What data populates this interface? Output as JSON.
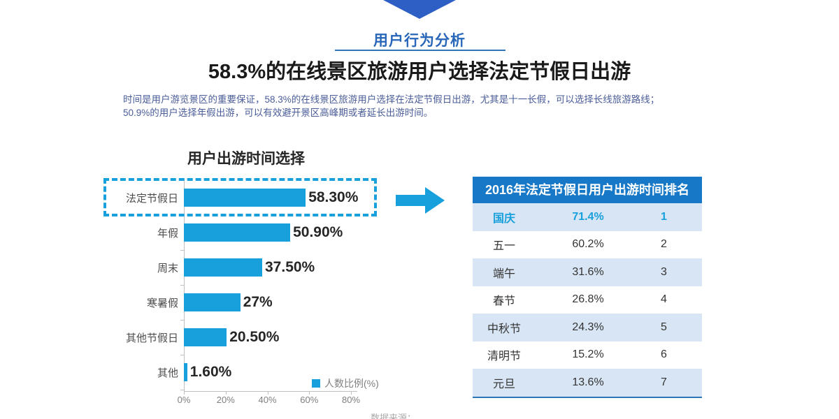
{
  "page": {
    "section_label": "用户行为分析",
    "title": "58.3%的在线景区旅游用户选择法定节假日出游",
    "description_line1": "时间是用户游览景区的重要保证，58.3%的在线景区旅游用户选择在法定节假日出游，尤其是十一长假，可以选择长线旅游路线；",
    "description_line2": "50.9%的用户选择年假出游，可以有效避开景区高峰期或者延长出游时间。",
    "source_note": "数据来源："
  },
  "icons": {
    "chevron_down": "chevron-down-icon",
    "arrow_right": "arrow-right-icon"
  },
  "chart_data": {
    "type": "bar",
    "orientation": "horizontal",
    "title": "用户出游时间选择",
    "categories": [
      "法定节假日",
      "年假",
      "周末",
      "寒暑假",
      "其他节假日",
      "其他"
    ],
    "values": [
      58.3,
      50.9,
      37.5,
      27,
      20.5,
      1.6
    ],
    "value_labels": [
      "58.30%",
      "50.90%",
      "37.50%",
      "27%",
      "20.50%",
      "1.60%"
    ],
    "x_ticks": [
      "0%",
      "20%",
      "40%",
      "60%",
      "80%"
    ],
    "xlim": [
      0,
      80
    ],
    "grid": false,
    "legend": "人数比例(%)",
    "legend_position": "bottom-right",
    "highlight_category": "法定节假日"
  },
  "table": {
    "title": "2016年法定节假日用户出游时间排名",
    "rows": [
      {
        "name": "国庆",
        "percent": "71.4%",
        "rank": "1"
      },
      {
        "name": "五一",
        "percent": "60.2%",
        "rank": "2"
      },
      {
        "name": "端午",
        "percent": "31.6%",
        "rank": "3"
      },
      {
        "name": "春节",
        "percent": "26.8%",
        "rank": "4"
      },
      {
        "name": "中秋节",
        "percent": "24.3%",
        "rank": "5"
      },
      {
        "name": "清明节",
        "percent": "15.2%",
        "rank": "6"
      },
      {
        "name": "元旦",
        "percent": "13.6%",
        "rank": "7"
      }
    ]
  },
  "colors": {
    "accent_cyan": "#18A0DC",
    "royal_blue": "#2E5FC5",
    "heading_blue": "#2766B8",
    "underline_blue": "#2E75B6",
    "paragraph_blue": "#4A5D99",
    "table_header_bg": "#1678C6",
    "table_row_alt_bg": "#D8E5F4",
    "axis_gray": "#BFBFBF",
    "tick_label_gray": "#7F7F7F"
  }
}
